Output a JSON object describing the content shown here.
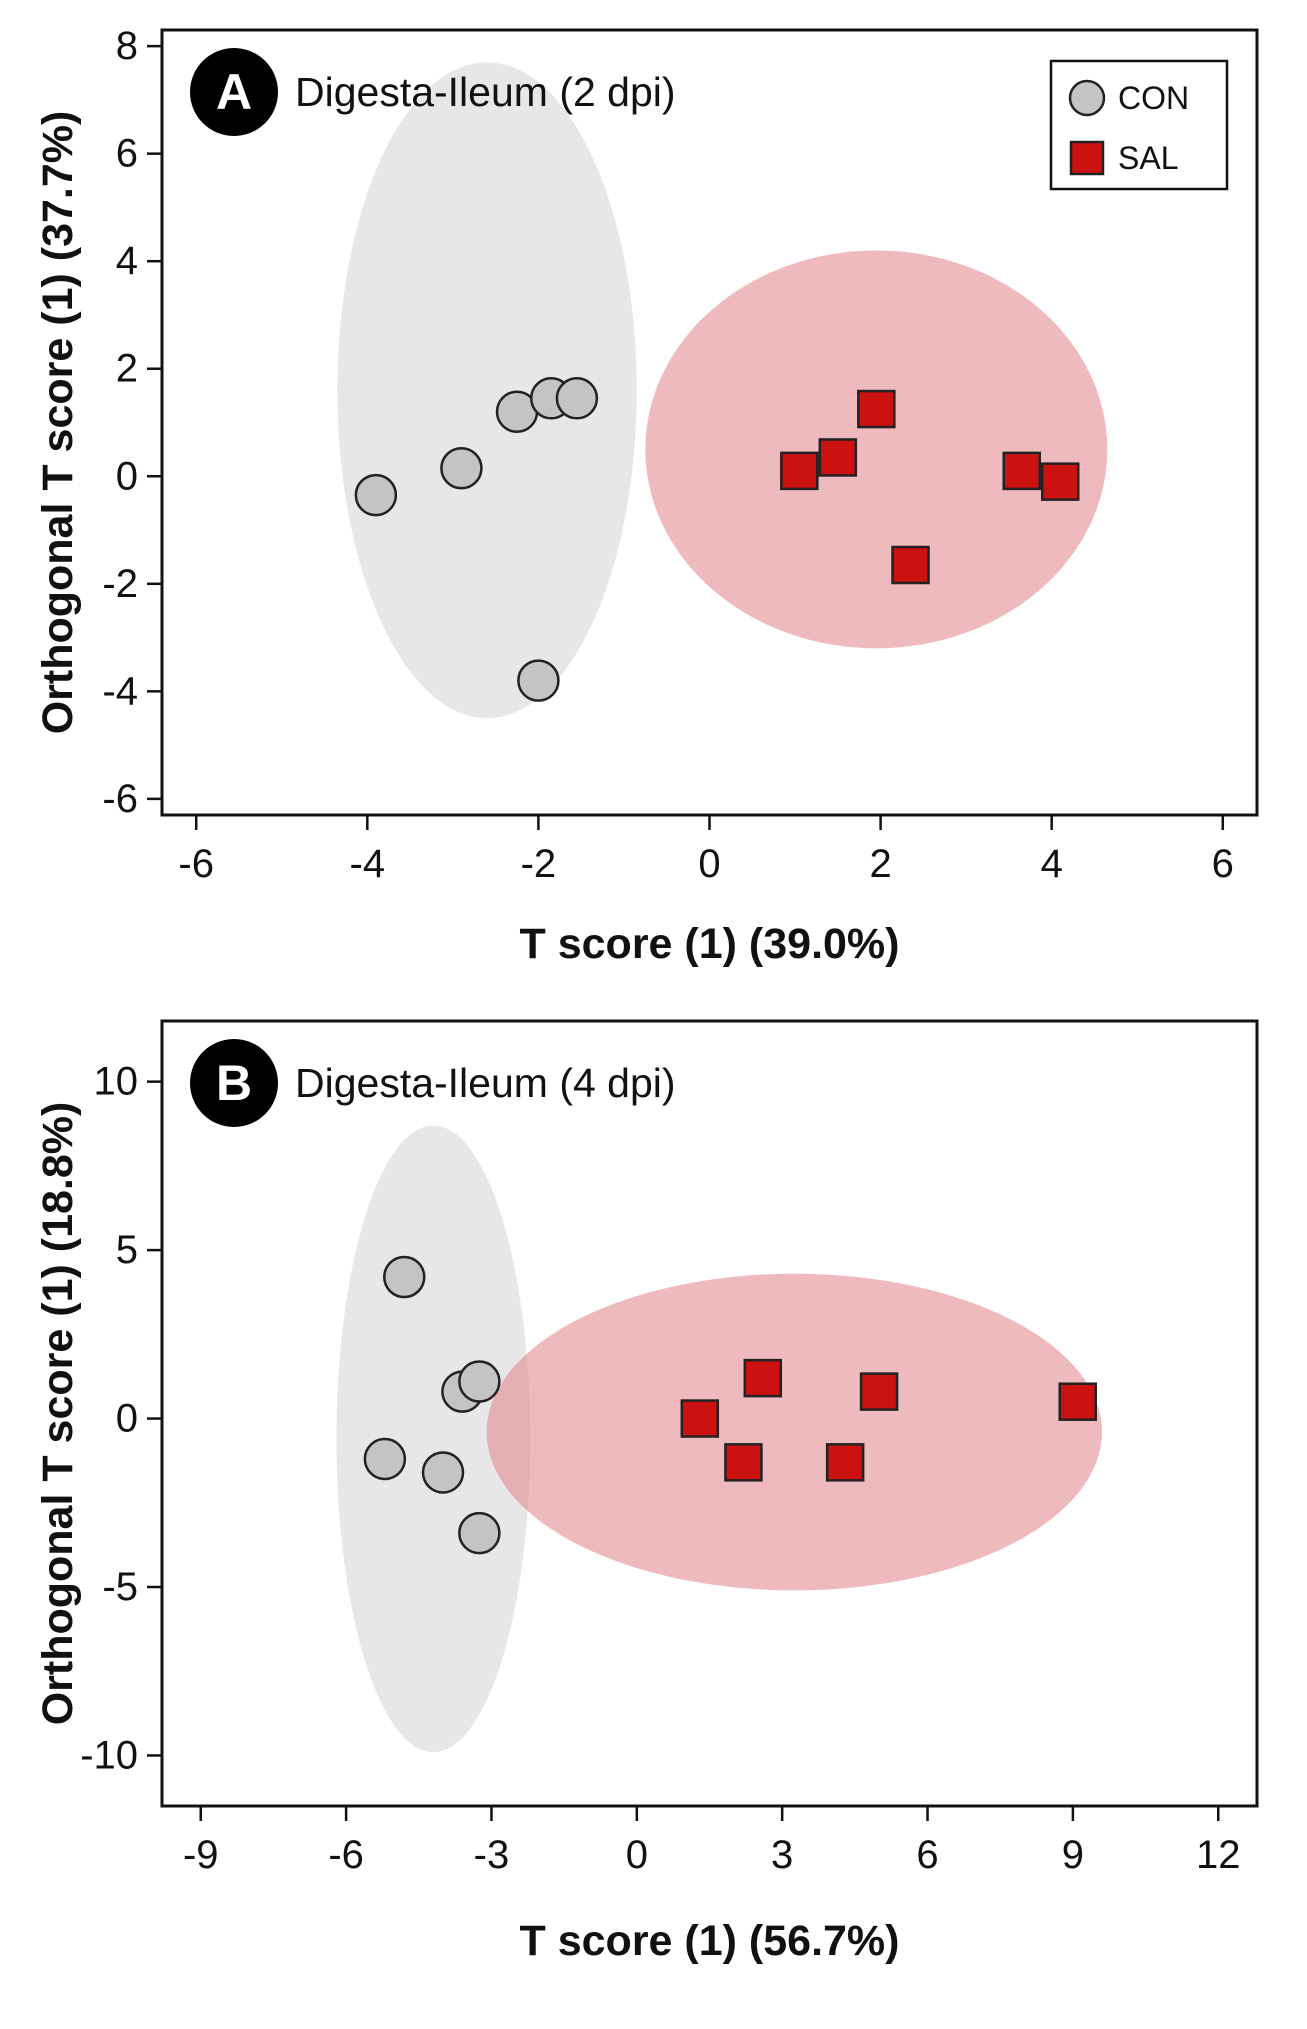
{
  "chart_data": [
    {
      "type": "scatter",
      "panel_letter": "A",
      "title": "Digesta-Ileum (2 dpi)",
      "xlabel": "T score (1) (39.0%)",
      "ylabel": "Orthogonal T score (1) (37.7%)",
      "xlim": [
        -6.4,
        6.4
      ],
      "ylim": [
        -6.3,
        8.3
      ],
      "xticks": [
        -6,
        -4,
        -2,
        0,
        2,
        4,
        6
      ],
      "yticks": [
        -6,
        -4,
        -2,
        0,
        2,
        4,
        6,
        8
      ],
      "grid": false,
      "legend": {
        "position": "top-right",
        "entries": [
          "CON",
          "SAL"
        ]
      },
      "ellipses": [
        {
          "series": "CON",
          "center": [
            -2.6,
            1.6
          ],
          "rx": 1.75,
          "ry": 6.1
        },
        {
          "series": "SAL",
          "center": [
            1.95,
            0.5
          ],
          "rx": 2.7,
          "ry": 3.7
        }
      ],
      "series": [
        {
          "name": "CON",
          "marker": "circle",
          "color": "#c4c4c4",
          "points": [
            [
              -3.9,
              -0.35
            ],
            [
              -2.9,
              0.15
            ],
            [
              -2.25,
              1.2
            ],
            [
              -1.85,
              1.45
            ],
            [
              -1.55,
              1.45
            ],
            [
              -2.0,
              -3.8
            ]
          ]
        },
        {
          "name": "SAL",
          "marker": "square",
          "color": "#cc1111",
          "points": [
            [
              1.05,
              0.1
            ],
            [
              1.5,
              0.35
            ],
            [
              1.95,
              1.25
            ],
            [
              2.35,
              -1.65
            ],
            [
              3.65,
              0.1
            ],
            [
              4.1,
              -0.1
            ]
          ]
        }
      ]
    },
    {
      "type": "scatter",
      "panel_letter": "B",
      "title": "Digesta-Ileum (4 dpi)",
      "xlabel": "T score (1) (56.7%)",
      "ylabel": "Orthogonal T score (1) (18.8%)",
      "xlim": [
        -9.8,
        12.8
      ],
      "ylim": [
        -11.5,
        11.8
      ],
      "xticks": [
        -9,
        -6,
        -3,
        0,
        3,
        6,
        9,
        12
      ],
      "yticks": [
        -10,
        -5,
        0,
        5,
        10
      ],
      "grid": false,
      "ellipses": [
        {
          "series": "CON",
          "center": [
            -4.2,
            -0.6
          ],
          "rx": 2.0,
          "ry": 9.3
        },
        {
          "series": "SAL",
          "center": [
            3.25,
            -0.4
          ],
          "rx": 6.35,
          "ry": 4.7
        }
      ],
      "series": [
        {
          "name": "CON",
          "marker": "circle",
          "color": "#c4c4c4",
          "points": [
            [
              -4.8,
              4.2
            ],
            [
              -3.6,
              0.8
            ],
            [
              -3.25,
              1.1
            ],
            [
              -5.2,
              -1.2
            ],
            [
              -4.0,
              -1.6
            ],
            [
              -3.25,
              -3.4
            ]
          ]
        },
        {
          "name": "SAL",
          "marker": "square",
          "color": "#cc1111",
          "points": [
            [
              1.3,
              0.0
            ],
            [
              2.6,
              1.2
            ],
            [
              2.2,
              -1.3
            ],
            [
              4.3,
              -1.3
            ],
            [
              5.0,
              0.8
            ],
            [
              9.1,
              0.5
            ]
          ]
        }
      ]
    }
  ]
}
